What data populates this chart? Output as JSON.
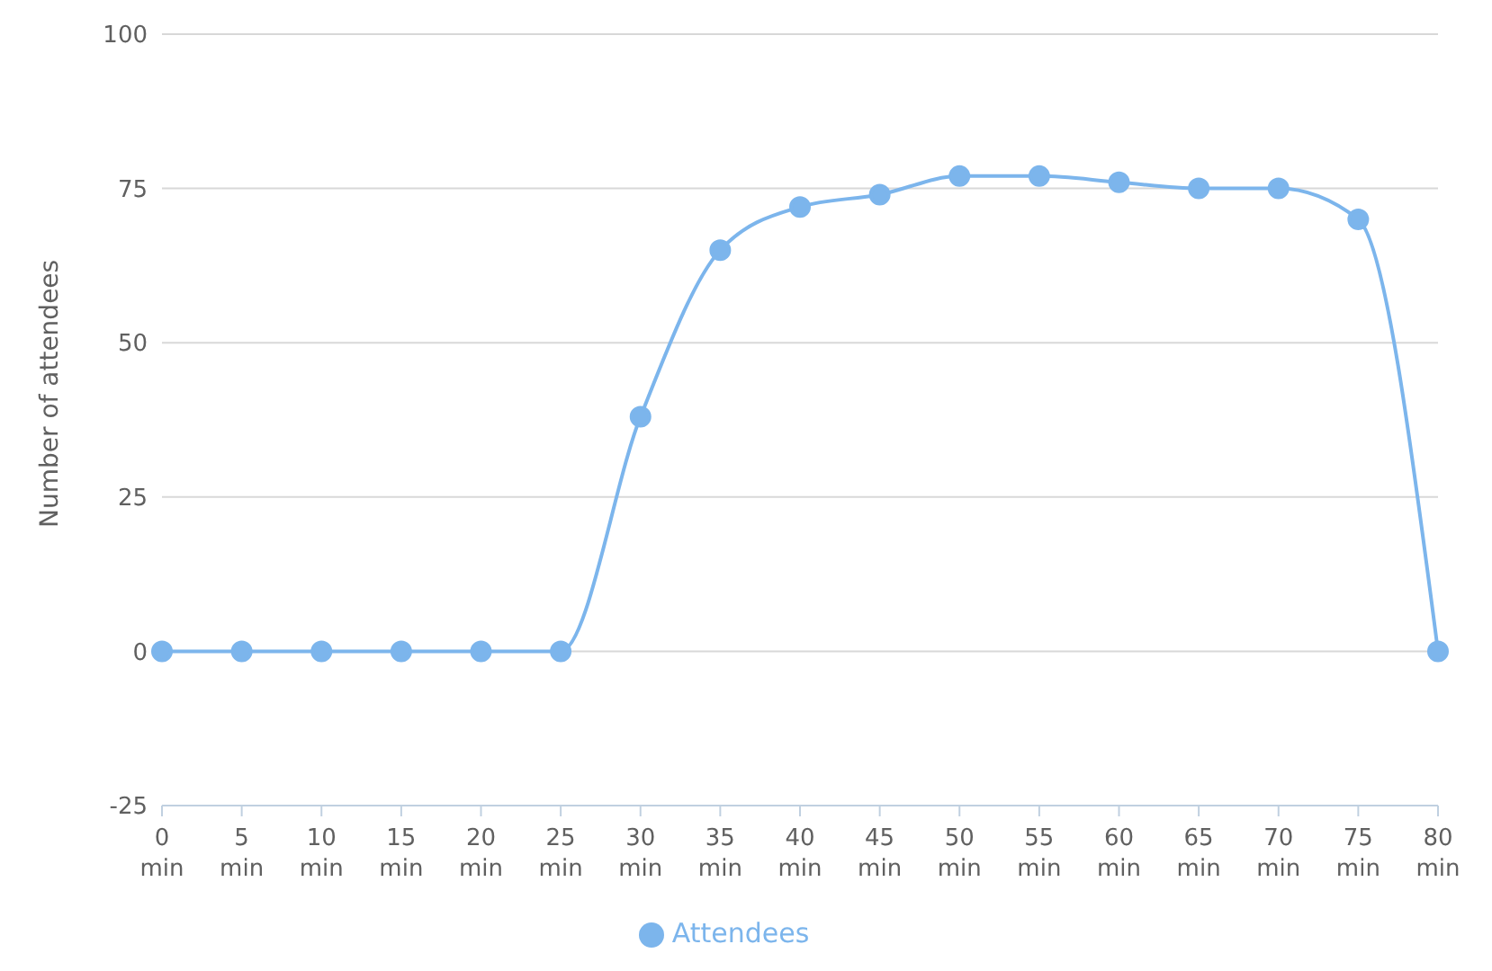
{
  "chart_data": {
    "type": "line",
    "ylabel": "Number of attendees",
    "categories": [
      "0 min",
      "5 min",
      "10 min",
      "15 min",
      "20 min",
      "25 min",
      "30 min",
      "35 min",
      "40 min",
      "45 min",
      "50 min",
      "55 min",
      "60 min",
      "65 min",
      "70 min",
      "75 min",
      "80 min"
    ],
    "series": [
      {
        "name": "Attendees",
        "color": "#7cb5ec",
        "values": [
          0,
          0,
          0,
          0,
          0,
          0,
          38,
          65,
          72,
          74,
          77,
          77,
          76,
          75,
          75,
          70,
          0
        ]
      }
    ],
    "ylim": [
      -25,
      100
    ],
    "yticks": [
      -25,
      0,
      25,
      50,
      75,
      100
    ],
    "grid": "y",
    "legend": "bottom",
    "marker": "circle",
    "line_style": "solid"
  }
}
